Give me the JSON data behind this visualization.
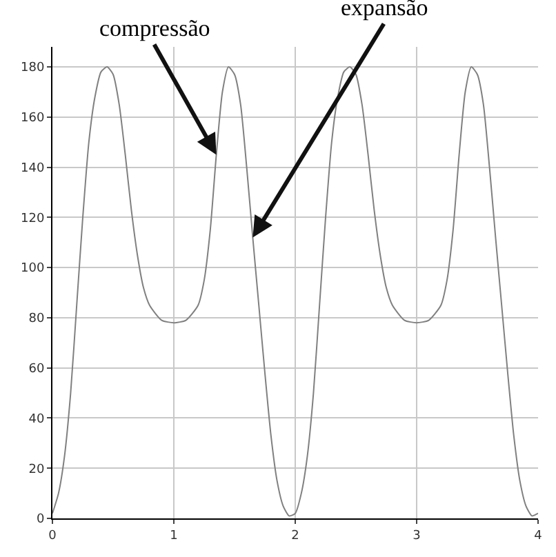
{
  "chart_data": {
    "type": "line",
    "x": [
      0,
      0.05,
      0.1,
      0.15,
      0.2,
      0.25,
      0.3,
      0.35,
      0.4,
      0.45,
      0.5,
      0.55,
      0.6,
      0.65,
      0.7,
      0.75,
      0.8,
      0.9,
      1.0,
      1.1,
      1.2,
      1.25,
      1.3,
      1.35,
      1.4,
      1.45,
      1.5,
      1.55,
      1.6,
      1.65,
      1.7,
      1.75,
      1.8,
      1.85,
      1.9,
      1.95,
      2.0,
      2.05,
      2.1,
      2.15,
      2.2,
      2.25,
      2.3,
      2.35,
      2.4,
      2.45,
      2.5,
      2.55,
      2.6,
      2.65,
      2.7,
      2.75,
      2.8,
      2.9,
      3.0,
      3.1,
      3.2,
      3.25,
      3.3,
      3.35,
      3.4,
      3.45,
      3.5,
      3.55,
      3.6,
      3.65,
      3.7,
      3.75,
      3.8,
      3.85,
      3.9,
      3.95,
      4.0
    ],
    "series": [
      {
        "color": "#808080",
        "values": [
          2,
          10,
          25,
          50,
          85,
          120,
          150,
          168,
          178,
          180,
          177,
          165,
          145,
          123,
          105,
          92,
          85,
          79,
          78,
          79,
          85,
          95,
          115,
          145,
          170,
          180,
          177,
          165,
          140,
          112,
          85,
          58,
          33,
          15,
          5,
          1,
          2,
          10,
          25,
          50,
          85,
          120,
          150,
          168,
          178,
          180,
          177,
          165,
          145,
          123,
          105,
          92,
          85,
          79,
          78,
          79,
          85,
          95,
          115,
          145,
          170,
          180,
          177,
          165,
          140,
          112,
          85,
          58,
          33,
          15,
          5,
          1,
          2
        ]
      }
    ],
    "xlim": [
      0,
      4
    ],
    "ylim": [
      0,
      188
    ],
    "xticks": [
      0,
      1,
      2,
      3,
      4
    ],
    "yticks": [
      0,
      20,
      40,
      60,
      80,
      100,
      120,
      140,
      160,
      180
    ],
    "grid": true,
    "legend": false,
    "marker": "none",
    "line_style": "solid",
    "annotations": [
      {
        "text": "compressão",
        "x": 1.35,
        "y": 145
      },
      {
        "text": "expansão",
        "x": 1.65,
        "y": 112
      }
    ]
  }
}
